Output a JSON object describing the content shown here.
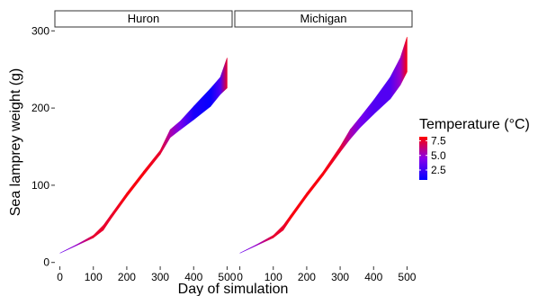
{
  "chart_data": {
    "type": "area",
    "facets": [
      {
        "name": "Huron",
        "series": {
          "x": [
            0,
            50,
            100,
            130,
            150,
            200,
            250,
            300,
            330,
            360,
            400,
            450,
            480,
            500
          ],
          "lower": [
            12,
            22,
            32,
            42,
            55,
            85,
            113,
            140,
            162,
            172,
            185,
            202,
            218,
            226
          ],
          "upper": [
            12,
            23,
            35,
            48,
            60,
            90,
            118,
            145,
            172,
            183,
            202,
            225,
            240,
            265
          ],
          "temp": [
            3.5,
            5.0,
            7.5,
            7.5,
            7.5,
            8.0,
            8.0,
            7.5,
            5.5,
            4.0,
            1.5,
            1.0,
            3.0,
            7.5
          ]
        }
      },
      {
        "name": "Michigan",
        "series": {
          "x": [
            0,
            50,
            100,
            130,
            150,
            200,
            250,
            300,
            330,
            360,
            400,
            450,
            480,
            500
          ],
          "lower": [
            12,
            22,
            32,
            42,
            55,
            85,
            113,
            143,
            160,
            175,
            192,
            212,
            230,
            247
          ],
          "upper": [
            12,
            23,
            35,
            48,
            60,
            90,
            118,
            150,
            172,
            188,
            210,
            240,
            265,
            292
          ],
          "temp": [
            3.5,
            5.0,
            7.5,
            7.5,
            8.0,
            8.0,
            8.0,
            7.5,
            5.5,
            4.0,
            3.0,
            3.0,
            5.0,
            8.0
          ]
        }
      }
    ],
    "xlabel": "Day of simulation",
    "ylabel": "Sea lamprey weight (g)",
    "xlim": [
      -15,
      515
    ],
    "ylim": [
      -5,
      305
    ],
    "xticks": [
      0,
      100,
      200,
      300,
      400,
      500
    ],
    "yticks": [
      0,
      100,
      200,
      300
    ],
    "grid": false,
    "legend": {
      "title": "Temperature (°C)",
      "placement": "right",
      "labels": [
        "7.5",
        "5.0",
        "2.5"
      ],
      "values": [
        7.5,
        5.0,
        2.5
      ],
      "range": [
        0.8,
        8.2
      ]
    },
    "colors": {
      "low": "#0000ff",
      "mid": "#8a00ea",
      "high": "#ff0000"
    }
  }
}
